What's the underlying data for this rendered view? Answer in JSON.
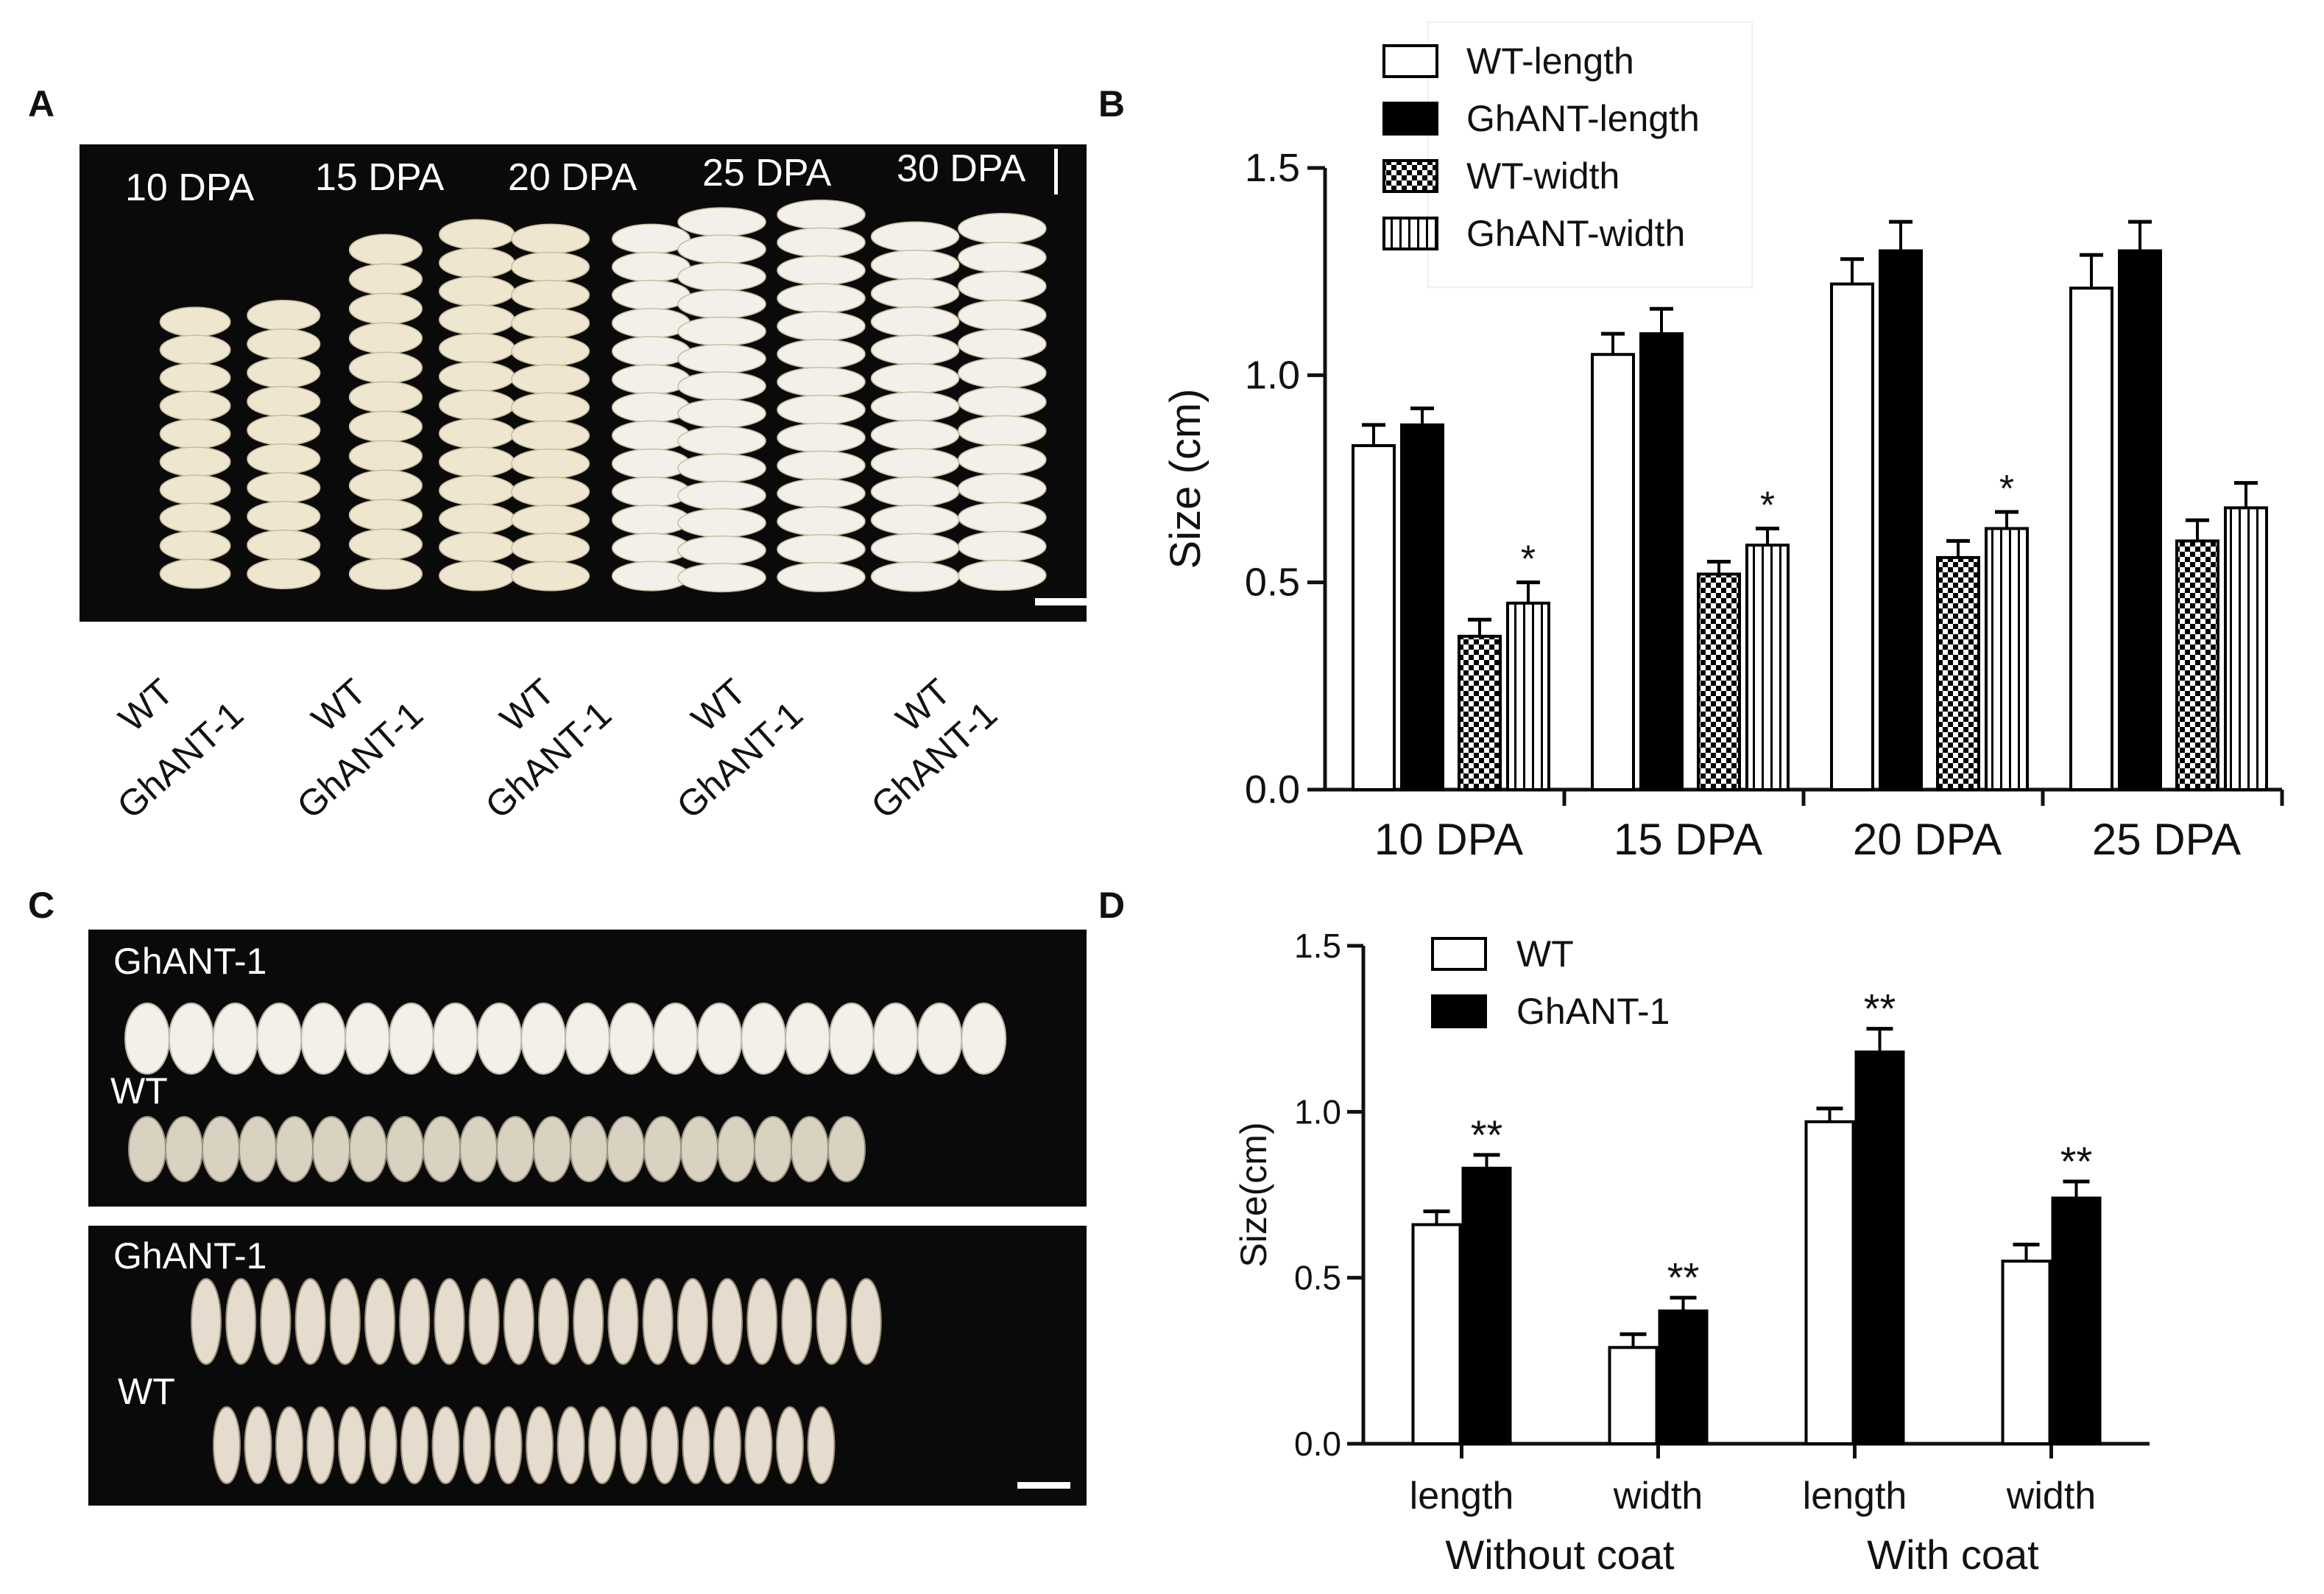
{
  "panels": {
    "a": {
      "letter": "A",
      "stages": [
        "10 DPA",
        "15 DPA",
        "20 DPA",
        "25 DPA",
        "30 DPA"
      ],
      "genotypes": [
        "WT",
        "GhANT-1"
      ]
    },
    "c": {
      "letter": "C",
      "top_photo": {
        "label_1": "GhANT-1",
        "label_2": "WT"
      },
      "bottom_photo": {
        "label_1": "GhANT-1",
        "label_2": "WT"
      }
    },
    "b": {
      "letter": "B"
    },
    "d": {
      "letter": "D"
    }
  },
  "colors": {
    "photo_bg": "#0a0a0a",
    "seed_light": "#efe6cf",
    "seed_fuzzy": "#f3f0ea",
    "seed_fuzzy_wt": "#d9d2c0",
    "seed_naked": "#e6dccd",
    "bar_white": "#ffffff",
    "bar_black": "#000000",
    "axis": "#111111"
  },
  "chart_data": [
    {
      "id": "B",
      "type": "bar",
      "title": "",
      "xlabel": "",
      "ylabel": "Size (cm)",
      "ylim": [
        0,
        1.5
      ],
      "yticks": [
        "0.0",
        "0.5",
        "1.0",
        "1.5"
      ],
      "yticks_values": [
        0,
        0.5,
        1.0,
        1.5
      ],
      "categories": [
        "10 DPA",
        "15 DPA",
        "20 DPA",
        "25 DPA"
      ],
      "legend_position": "top-left",
      "series": [
        {
          "name": "WT-length",
          "fill": "white",
          "values": [
            0.83,
            1.05,
            1.22,
            1.21
          ],
          "errors": [
            0.05,
            0.05,
            0.06,
            0.08
          ]
        },
        {
          "name": "GhANT-length",
          "fill": "black",
          "values": [
            0.88,
            1.1,
            1.3,
            1.3
          ],
          "errors": [
            0.04,
            0.06,
            0.07,
            0.07
          ]
        },
        {
          "name": "WT-width",
          "fill": "checker",
          "values": [
            0.37,
            0.52,
            0.56,
            0.6
          ],
          "errors": [
            0.04,
            0.03,
            0.04,
            0.05
          ]
        },
        {
          "name": "GhANT-width",
          "fill": "vlines",
          "values": [
            0.45,
            0.59,
            0.63,
            0.68
          ],
          "errors": [
            0.05,
            0.04,
            0.04,
            0.06
          ]
        }
      ],
      "annotations": [
        {
          "text": "*",
          "category": "10 DPA",
          "series": "GhANT-width"
        },
        {
          "text": "*",
          "category": "15 DPA",
          "series": "GhANT-width"
        },
        {
          "text": "*",
          "category": "20 DPA",
          "series": "GhANT-width"
        }
      ]
    },
    {
      "id": "D",
      "type": "bar",
      "title": "",
      "ylabel": "Size(cm)",
      "ylim": [
        0,
        1.5
      ],
      "yticks": [
        "0.0",
        "0.5",
        "1.0",
        "1.5"
      ],
      "yticks_values": [
        0,
        0.5,
        1.0,
        1.5
      ],
      "categories": [
        "length",
        "width",
        "length",
        "width"
      ],
      "groups": [
        {
          "label": "Without coat",
          "categories": [
            0,
            1
          ]
        },
        {
          "label": "With coat",
          "categories": [
            2,
            3
          ]
        }
      ],
      "legend_position": "top-left",
      "series": [
        {
          "name": "WT",
          "fill": "white",
          "values": [
            0.66,
            0.29,
            0.97,
            0.55
          ],
          "errors": [
            0.04,
            0.04,
            0.04,
            0.05
          ]
        },
        {
          "name": "GhANT-1",
          "fill": "black",
          "values": [
            0.83,
            0.4,
            1.18,
            0.74
          ],
          "errors": [
            0.04,
            0.04,
            0.07,
            0.05
          ]
        }
      ],
      "annotations": [
        {
          "text": "**",
          "category": 0,
          "series": "GhANT-1"
        },
        {
          "text": "**",
          "category": 1,
          "series": "GhANT-1"
        },
        {
          "text": "**",
          "category": 2,
          "series": "GhANT-1"
        },
        {
          "text": "**",
          "category": 3,
          "series": "GhANT-1"
        }
      ]
    }
  ]
}
